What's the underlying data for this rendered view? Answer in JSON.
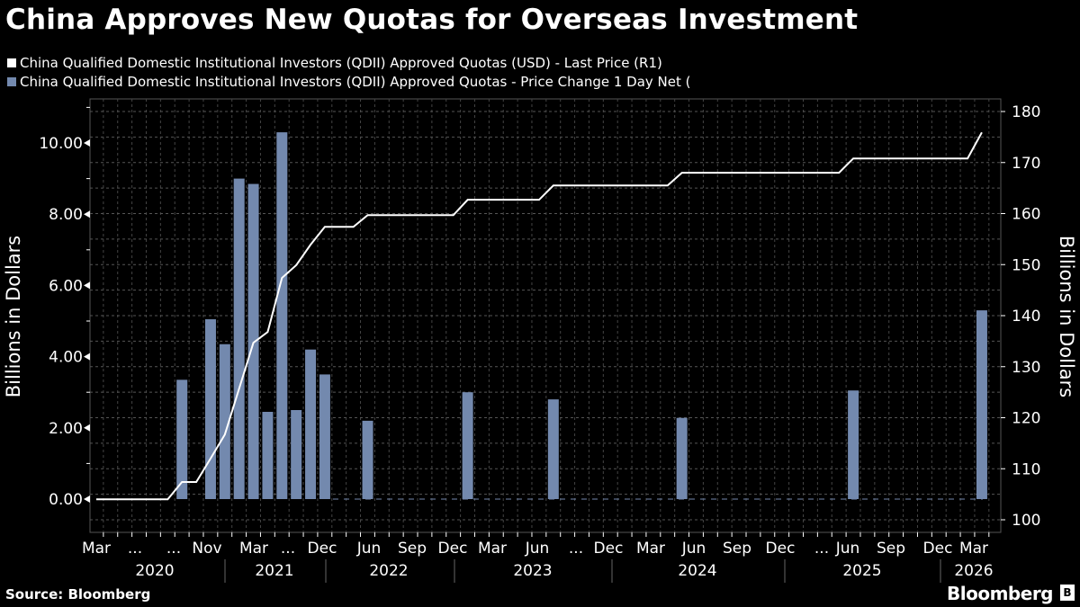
{
  "title": "China Approves New Quotas for Overseas Investment",
  "legend": [
    {
      "label": "China Qualified Domestic Institutional Investors (QDII) Approved Quotas (USD) - Last Price (R1)",
      "color": "#ffffff"
    },
    {
      "label": "China Qualified Domestic Institutional Investors (QDII) Approved Quotas - Price Change 1 Day Net (",
      "color": "#7389ae"
    }
  ],
  "source": "Source: Bloomberg",
  "logo": "Bloomberg",
  "chart_data": {
    "type": "bar+line",
    "ylabel_left": "Billions in Dollars",
    "ylabel_right": "Billions in Dollars",
    "ylim_left": [
      -1,
      11
    ],
    "ylim_right": [
      100,
      182
    ],
    "yticks_left": [
      "0.00",
      "2.00",
      "4.00",
      "6.00",
      "8.00",
      "10.00"
    ],
    "yticks_right": [
      "100",
      "110",
      "120",
      "130",
      "140",
      "150",
      "160",
      "170",
      "180"
    ],
    "grid": true,
    "x_tick_labels": [
      "Mar",
      "...",
      "...",
      "Nov",
      "Mar",
      "...",
      "Dec",
      "Jun",
      "Sep",
      "Dec",
      "Mar",
      "Jun",
      "...",
      "Dec",
      "Mar",
      "Jun",
      "Sep",
      "Dec",
      "...",
      "Jun",
      "Sep",
      "Dec",
      "Mar"
    ],
    "x_year_labels": [
      "2020",
      "2021",
      "2022",
      "2023",
      "2024",
      "2025",
      "2026"
    ],
    "bars": {
      "name": "China Qualified Domestic Institutional Investors (QDII) Approved Quotas - Price Change 1 Day Net",
      "axis": "left",
      "color": "#7389ae",
      "points": [
        [
          6,
          3.35
        ],
        [
          8,
          5.05
        ],
        [
          9,
          4.35
        ],
        [
          10,
          9.0
        ],
        [
          11,
          8.85
        ],
        [
          12,
          2.45
        ],
        [
          13,
          10.3
        ],
        [
          14,
          2.5
        ],
        [
          15,
          4.2
        ],
        [
          16,
          3.5
        ],
        [
          19,
          2.2
        ],
        [
          26,
          3.0
        ],
        [
          32,
          2.8
        ],
        [
          41,
          2.28
        ],
        [
          53,
          3.05
        ],
        [
          62,
          5.3
        ]
      ]
    },
    "line": {
      "name": "China Qualified Domestic Institutional Investors (QDII) Approved Quotas (USD) - Last Price",
      "axis": "right",
      "color": "#ffffff",
      "points": [
        [
          0,
          104.0
        ],
        [
          5,
          104.0
        ],
        [
          6,
          107.4
        ],
        [
          7,
          107.4
        ],
        [
          8,
          112.0
        ],
        [
          9,
          116.7
        ],
        [
          11,
          134.7
        ],
        [
          12,
          136.8
        ],
        [
          13,
          147.4
        ],
        [
          14,
          149.9
        ],
        [
          15,
          153.9
        ],
        [
          16,
          157.4
        ],
        [
          18,
          157.4
        ],
        [
          19,
          159.7
        ],
        [
          25,
          159.7
        ],
        [
          26,
          162.7
        ],
        [
          31,
          162.7
        ],
        [
          32,
          165.5
        ],
        [
          40,
          165.5
        ],
        [
          41,
          168.0
        ],
        [
          52,
          168.0
        ],
        [
          53,
          170.8
        ],
        [
          61,
          170.8
        ],
        [
          62,
          175.9
        ]
      ]
    }
  }
}
